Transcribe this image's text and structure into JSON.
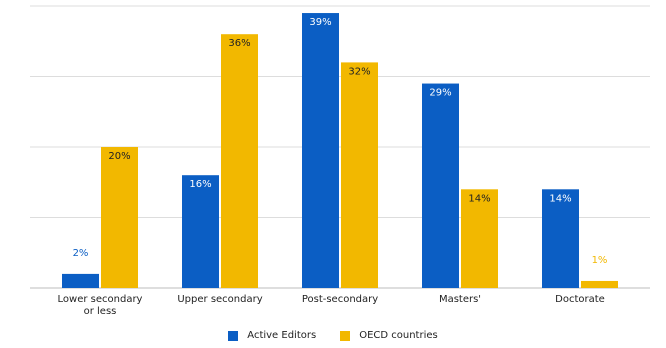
{
  "chart_data": {
    "type": "bar",
    "categories": [
      "Lower secondary\nor less",
      "Upper secondary",
      "Post-secondary",
      "Masters'",
      "Doctorate"
    ],
    "series": [
      {
        "name": "Active Editors",
        "color": "#0b5ec4",
        "values": [
          2,
          16,
          39,
          29,
          14
        ],
        "labels": [
          "2%",
          "16%",
          "39%",
          "29%",
          "14%"
        ]
      },
      {
        "name": "OECD countries",
        "color": "#f2b800",
        "values": [
          20,
          36,
          32,
          14,
          1
        ],
        "labels": [
          "20%",
          "36%",
          "32%",
          "14%",
          "1%"
        ]
      }
    ],
    "ylim": [
      0,
      40
    ],
    "grid": true,
    "legend_position": "bottom"
  }
}
